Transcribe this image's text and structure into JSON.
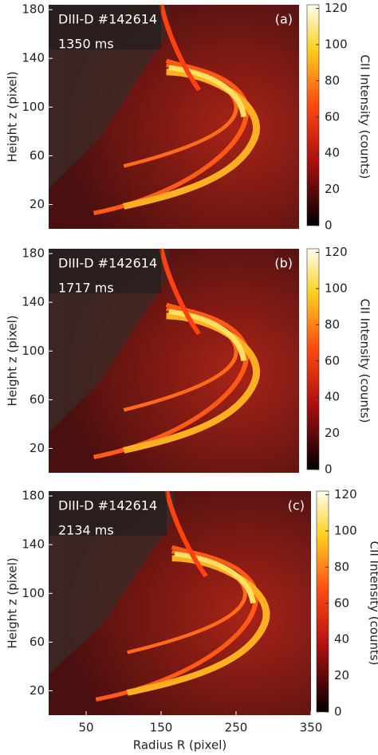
{
  "chart_data": [
    {
      "type": "image",
      "annotations": [
        "DIII-D #142614",
        "1350 ms"
      ],
      "panel_label": "(a)",
      "ylabel": "Height z (pixel)",
      "ylim": [
        0,
        184
      ],
      "yticks": [
        20,
        60,
        100,
        140,
        180
      ],
      "colorbar": {
        "label": "CII Intensity (counts)",
        "lim": [
          0,
          122
        ],
        "ticks": [
          0,
          20,
          40,
          60,
          80,
          100,
          120
        ]
      }
    },
    {
      "type": "image",
      "annotations": [
        "DIII-D #142614",
        "1717 ms"
      ],
      "panel_label": "(b)",
      "ylabel": "Height z (pixel)",
      "ylim": [
        0,
        184
      ],
      "yticks": [
        20,
        60,
        100,
        140,
        180
      ],
      "colorbar": {
        "label": "CII Intensity (counts)",
        "lim": [
          0,
          122
        ],
        "ticks": [
          0,
          20,
          40,
          60,
          80,
          100,
          120
        ]
      }
    },
    {
      "type": "image",
      "annotations": [
        "DIII-D #142614",
        "2134 ms"
      ],
      "panel_label": "(c)",
      "ylabel": "Height z (pixel)",
      "xlabel": "Radius R (pixel)",
      "xlim": [
        0,
        350
      ],
      "xticks": [
        50,
        150,
        250,
        350
      ],
      "ylim": [
        0,
        184
      ],
      "yticks": [
        20,
        60,
        100,
        140,
        180
      ],
      "colorbar": {
        "label": "CII Intensity (counts)",
        "lim": [
          0,
          122
        ],
        "ticks": [
          0,
          20,
          40,
          60,
          80,
          100,
          120
        ]
      }
    }
  ]
}
